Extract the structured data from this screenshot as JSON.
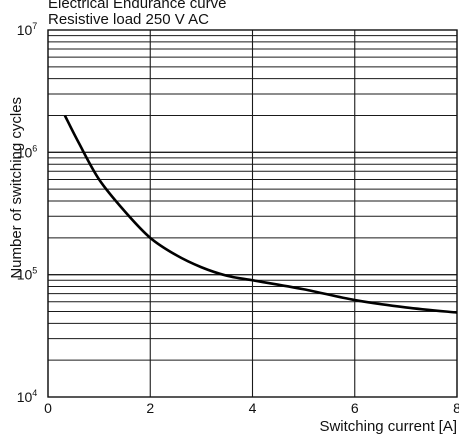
{
  "chart_data": {
    "type": "line",
    "title": "Electrical Endurance curve",
    "subtitle": "Resistive load 250 V AC",
    "xlabel": "Switching current [A]",
    "ylabel": "Number of switching cycles",
    "x_ticks": [
      "0",
      "2",
      "4",
      "6",
      "8"
    ],
    "xlim": [
      0,
      8
    ],
    "y_scale": "log",
    "ylim": [
      10000,
      10000000
    ],
    "y_ticks": [
      {
        "base": "10",
        "exp": "4"
      },
      {
        "base": "10",
        "exp": "5"
      },
      {
        "base": "10",
        "exp": "6"
      },
      {
        "base": "10",
        "exp": "7"
      }
    ],
    "grid": true,
    "series": [
      {
        "x": [
          0.33,
          0.6,
          1.0,
          1.5,
          2.0,
          2.5,
          3.0,
          3.5,
          4.0,
          5.0,
          6.0,
          7.0,
          8.0
        ],
        "values": [
          2000000,
          1200000,
          600000,
          330000,
          200000,
          145000,
          115000,
          98000,
          90000,
          76000,
          62000,
          54000,
          49000
        ]
      }
    ]
  }
}
